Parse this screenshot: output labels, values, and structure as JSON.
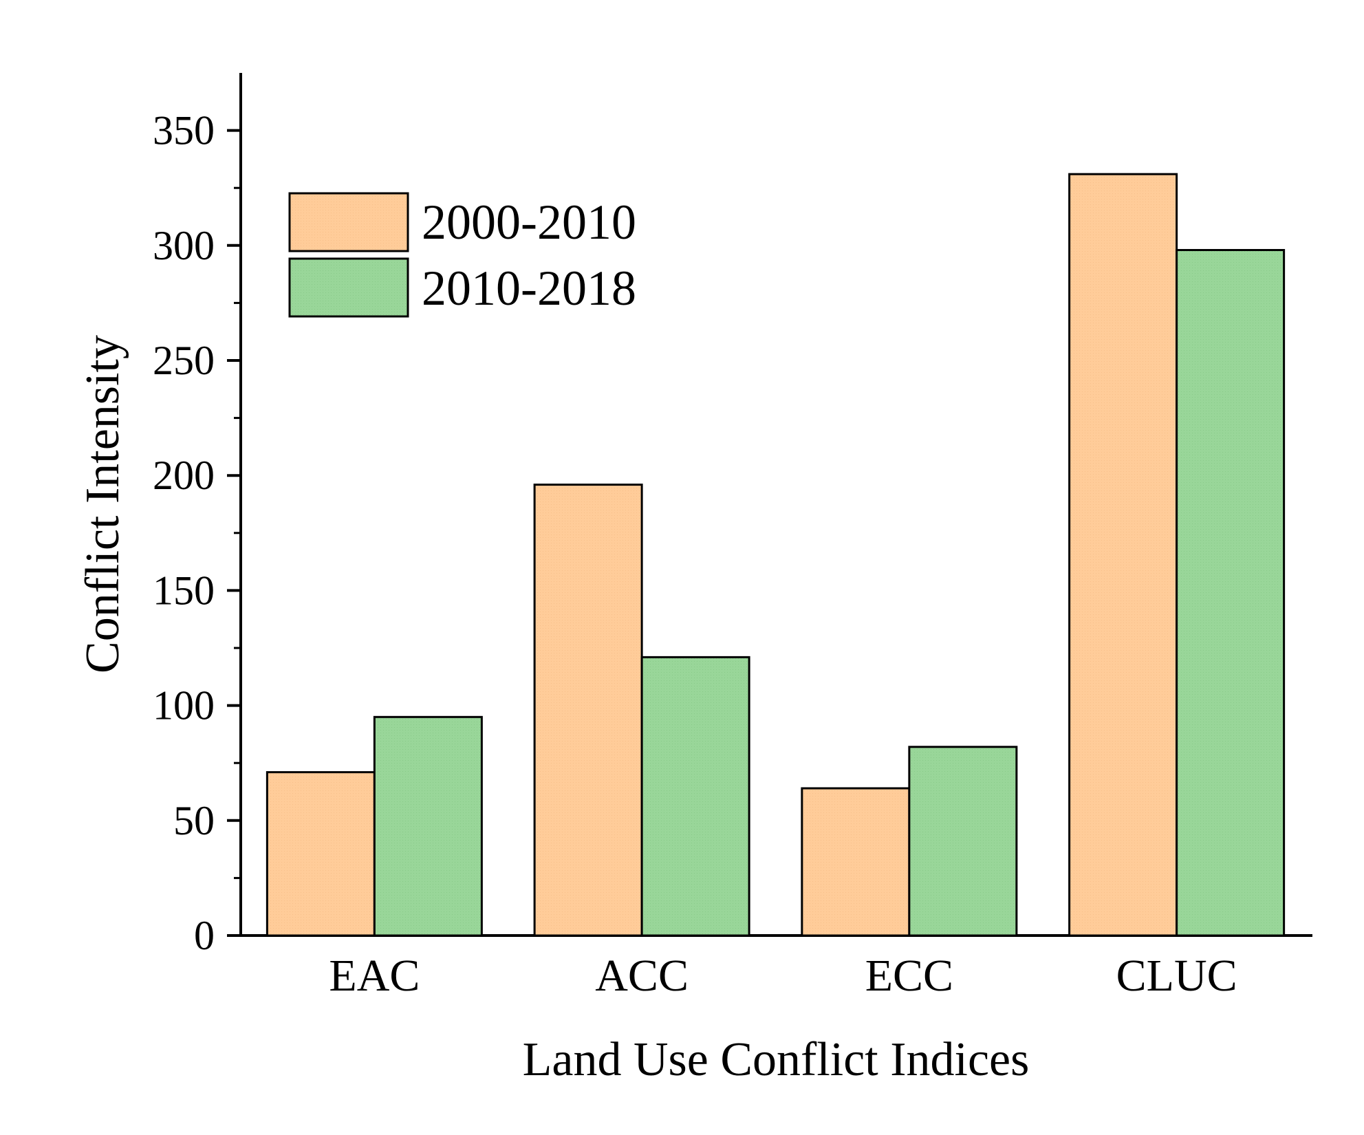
{
  "chart_data": {
    "type": "bar",
    "title": "",
    "xlabel": "Land Use Conflict Indices",
    "ylabel": "Conflict Intensity",
    "categories": [
      "EAC",
      "ACC",
      "ECC",
      "CLUC"
    ],
    "series": [
      {
        "name": "2000-2010",
        "color": "#FFCC99",
        "values": [
          71,
          196,
          64,
          331
        ]
      },
      {
        "name": "2010-2018",
        "color": "#99D699",
        "values": [
          95,
          121,
          82,
          298
        ]
      }
    ],
    "ylim": [
      0,
      375
    ],
    "yticks": [
      0,
      50,
      100,
      150,
      200,
      250,
      300,
      350
    ],
    "ytick_labels": [
      "0",
      "50",
      "100",
      "150",
      "200",
      "250",
      "300",
      "350"
    ],
    "grid": false,
    "legend_position": "top-left"
  }
}
